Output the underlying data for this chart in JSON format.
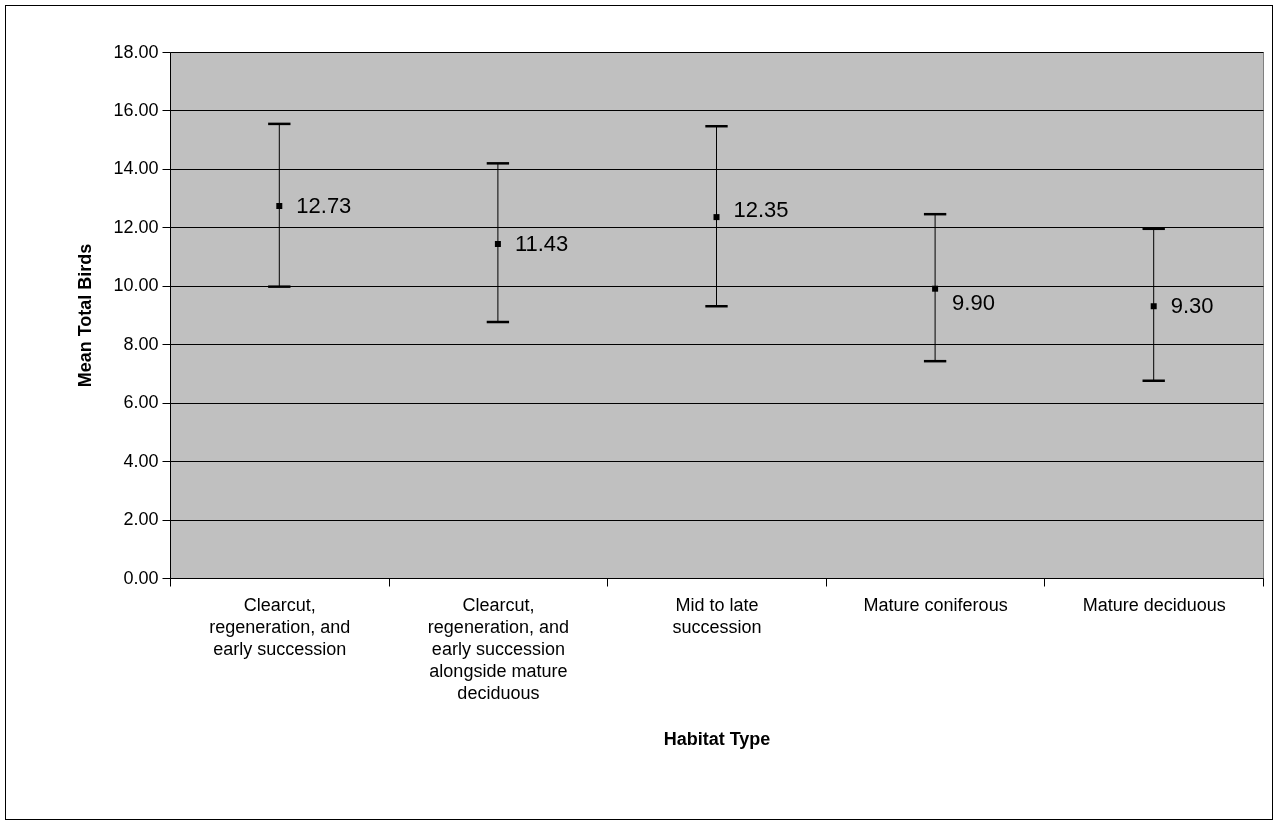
{
  "chart_data": {
    "type": "scatter",
    "xlabel": "Habitat Type",
    "ylabel": "Mean Total Birds",
    "categories": [
      "Clearcut, regeneration, and early succession",
      "Clearcut, regeneration, and early succession alongside mature deciduous",
      "Mid to late succession",
      "Mature coniferous",
      "Mature deciduous"
    ],
    "color": "#000000",
    "values": [
      12.73,
      11.43,
      12.35,
      9.9,
      9.3
    ],
    "errors": [
      [
        9.97,
        15.54
      ],
      [
        8.76,
        14.19
      ],
      [
        9.3,
        15.46
      ],
      [
        7.42,
        12.45
      ],
      [
        6.75,
        11.95
      ]
    ],
    "value_labels": [
      "12.73",
      "11.43",
      "12.35",
      "9.90",
      "9.30"
    ],
    "ylim": [
      0,
      18
    ],
    "yticks": [
      {
        "value": 0,
        "label": "0.00"
      },
      {
        "value": 2,
        "label": "2.00"
      },
      {
        "value": 4,
        "label": "4.00"
      },
      {
        "value": 6,
        "label": "6.00"
      },
      {
        "value": 8,
        "label": "8.00"
      },
      {
        "value": 10,
        "label": "10.00"
      },
      {
        "value": 12,
        "label": "12.00"
      },
      {
        "value": 14,
        "label": "14.00"
      },
      {
        "value": 16,
        "label": "16.00"
      },
      {
        "value": 18,
        "label": "18.00"
      }
    ],
    "grid": "y",
    "marker": "square"
  }
}
